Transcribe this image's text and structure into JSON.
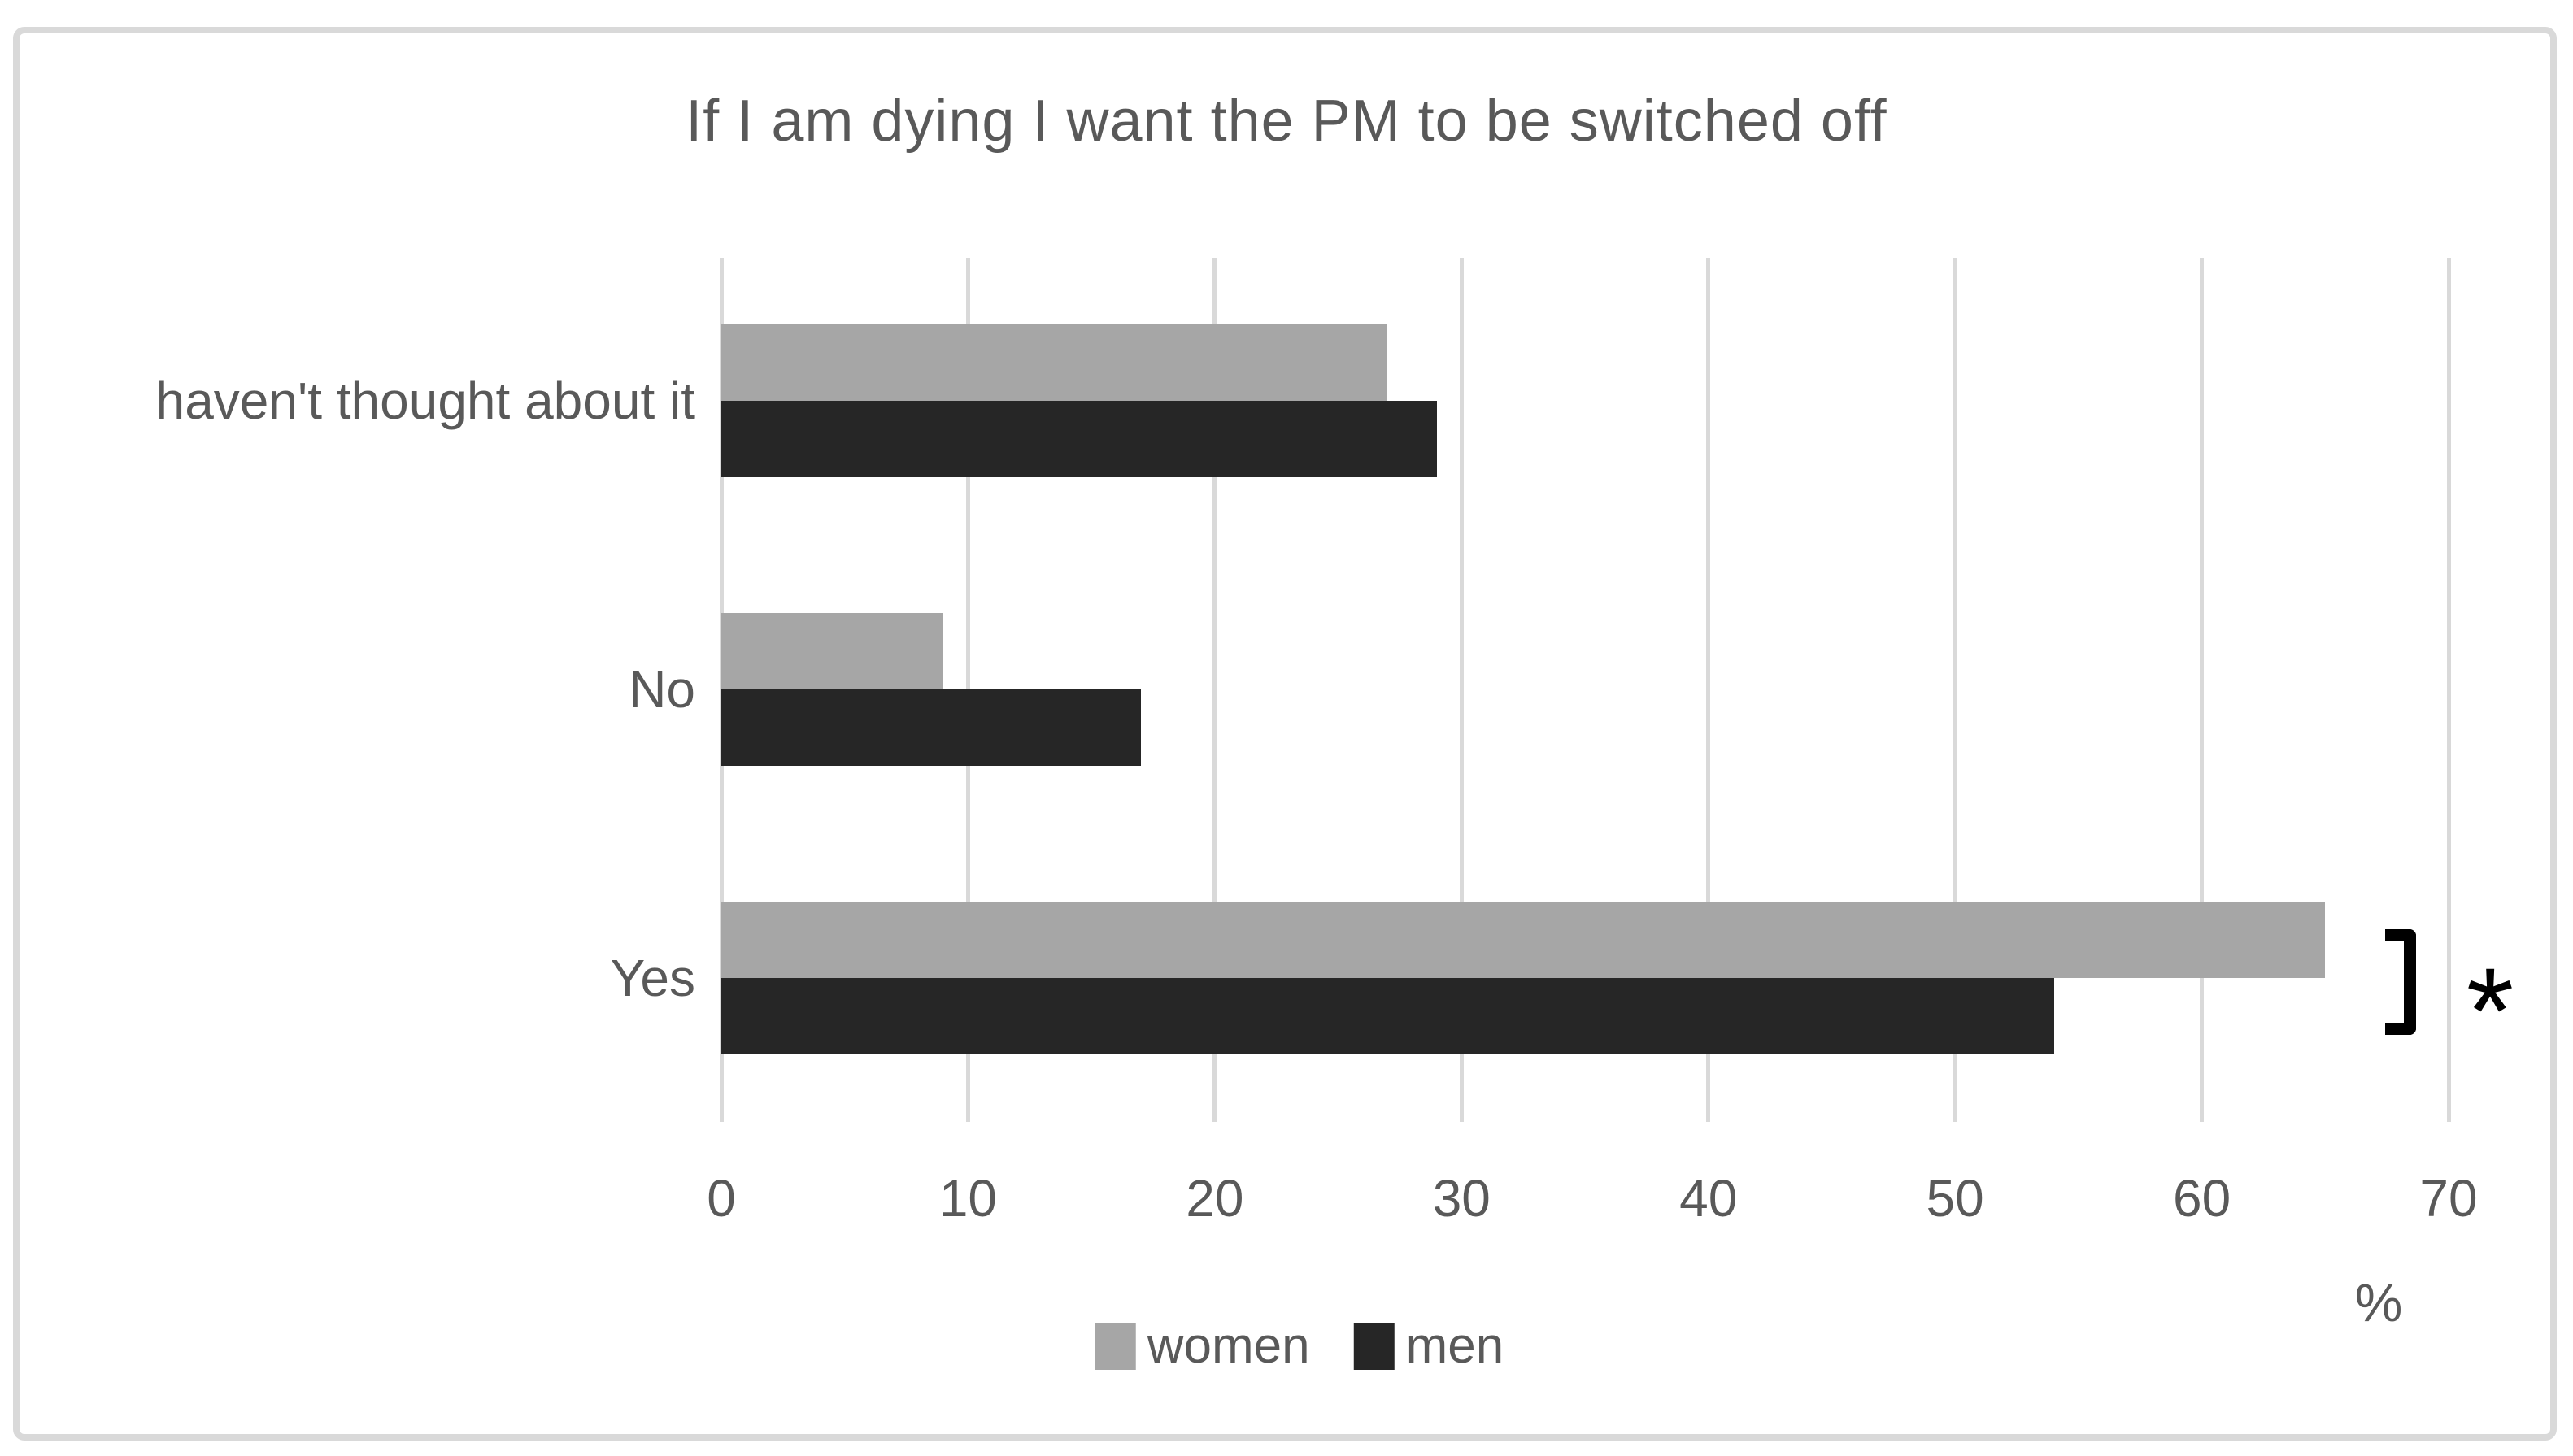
{
  "chart_data": {
    "type": "bar",
    "orientation": "horizontal",
    "title": "If I am dying I want the PM to be switched off",
    "categories": [
      "haven't thought about it",
      "No",
      "Yes"
    ],
    "series": [
      {
        "name": "women",
        "color": "#a6a6a6",
        "values": [
          27,
          9,
          65
        ]
      },
      {
        "name": "men",
        "color": "#262626",
        "values": [
          29,
          17,
          54
        ]
      }
    ],
    "xlabel": "%",
    "xticks": [
      0,
      10,
      20,
      30,
      40,
      50,
      60,
      70
    ],
    "xlim": [
      0,
      70
    ],
    "grid": true,
    "legend_position": "bottom",
    "annotation": {
      "symbol": "*",
      "category": "Yes"
    }
  },
  "colors": {
    "gridline": "#d9d9d9",
    "frame": "#d9d9d9",
    "text": "#595959",
    "bracket": "#000000"
  }
}
